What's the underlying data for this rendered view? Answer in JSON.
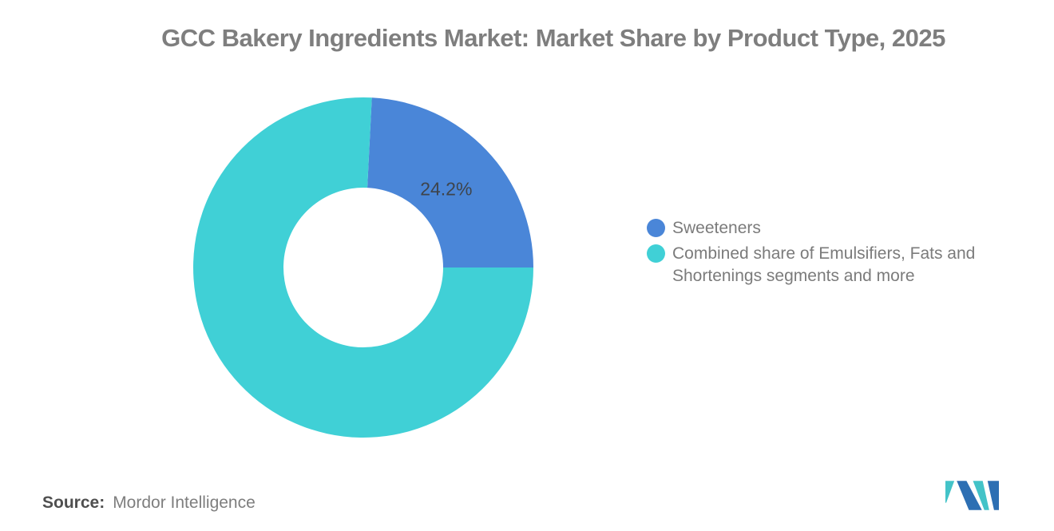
{
  "title": "GCC Bakery Ingredients Market: Market Share by Product Type, 2025",
  "chart_data": {
    "type": "pie",
    "subtype": "donut",
    "title": "GCC Bakery Ingredients Market: Market Share by Product Type, 2025",
    "unit": "%",
    "inner_radius_ratio": 0.47,
    "legend_position": "right",
    "slices": [
      {
        "label": "Sweeteners",
        "value": 24.2,
        "data_label": "24.2%",
        "color": "#4A86D8"
      },
      {
        "label": "Combined share of Emulsifiers, Fats and Shortenings segments and more",
        "value": 75.8,
        "data_label": "",
        "color": "#40D0D6"
      }
    ]
  },
  "legend": {
    "items": [
      {
        "label": "Sweeteners",
        "color": "#4A86D8"
      },
      {
        "label": "Combined share of Emulsifiers, Fats and Shortenings segments and more",
        "color": "#40D0D6"
      }
    ]
  },
  "footer": {
    "source_label": "Source:",
    "source_value": "Mordor Intelligence"
  },
  "logo": {
    "name": "mordor-intelligence-logo",
    "blue": "#2D6FB3",
    "teal": "#43C3C8"
  },
  "colors": {
    "title_text": "#7E7E7E",
    "legend_text": "#7B7B7B",
    "slice_label_text": "#3E444B"
  }
}
